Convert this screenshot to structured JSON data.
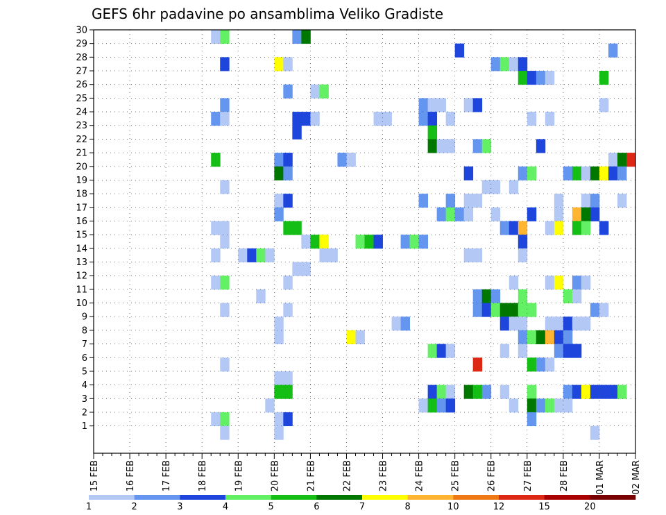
{
  "chart_data": {
    "type": "heatmap",
    "title": "GEFS 6hr padavine po ansamblima Veliko Gradiste",
    "members": [
      "1",
      "2",
      "3",
      "4",
      "5",
      "6",
      "7",
      "8",
      "9",
      "10",
      "11",
      "12",
      "13",
      "14",
      "15",
      "16",
      "17",
      "18",
      "19",
      "20",
      "21",
      "22",
      "23",
      "24",
      "25",
      "26",
      "27",
      "28",
      "29",
      "30"
    ],
    "date_labels": [
      "15 FEB",
      "16 FEB",
      "17 FEB",
      "18 FEB",
      "19 FEB",
      "20 FEB",
      "21 FEB",
      "22 FEB",
      "23 FEB",
      "24 FEB",
      "25 FEB",
      "26 FEB",
      "27 FEB",
      "28 FEB",
      "01 MAR",
      "02 MAR"
    ],
    "time_step_hours": 6,
    "grid": true,
    "colorbar": {
      "position": "bottom",
      "levels": [
        "1",
        "2",
        "3",
        "4",
        "5",
        "6",
        "7",
        "8",
        "10",
        "12",
        "15",
        "20"
      ],
      "colors": [
        "#b4c8f5",
        "#6496f0",
        "#1e46dc",
        "#64f064",
        "#14be14",
        "#007800",
        "#ffff00",
        "#ffb432",
        "#f07814",
        "#dc2814",
        "#aa0000",
        "#780000"
      ]
    },
    "cells": [
      {
        "m": 30,
        "t": [
          [
            13,
            1
          ],
          [
            14,
            4
          ],
          [
            22,
            2
          ],
          [
            23,
            6
          ]
        ]
      },
      {
        "m": 29,
        "t": [
          [
            40,
            3
          ],
          [
            57,
            2
          ]
        ]
      },
      {
        "m": 28,
        "t": [
          [
            14,
            3
          ],
          [
            20,
            7
          ],
          [
            21,
            1
          ],
          [
            44,
            2
          ],
          [
            45,
            4
          ],
          [
            46,
            1
          ],
          [
            47,
            3
          ]
        ]
      },
      {
        "m": 27,
        "t": [
          [
            47,
            5
          ],
          [
            48,
            3
          ],
          [
            49,
            2
          ],
          [
            50,
            1
          ],
          [
            56,
            5
          ]
        ]
      },
      {
        "m": 26,
        "t": [
          [
            21,
            2
          ],
          [
            24,
            1
          ],
          [
            25,
            4
          ]
        ]
      },
      {
        "m": 25,
        "t": [
          [
            14,
            2
          ],
          [
            36,
            2
          ],
          [
            37,
            1
          ],
          [
            38,
            1
          ],
          [
            41,
            1
          ],
          [
            42,
            3
          ],
          [
            56,
            1
          ]
        ]
      },
      {
        "m": 24,
        "t": [
          [
            13,
            2
          ],
          [
            14,
            1
          ],
          [
            22,
            3
          ],
          [
            23,
            3
          ],
          [
            24,
            1
          ],
          [
            31,
            1
          ],
          [
            32,
            1
          ],
          [
            36,
            2
          ],
          [
            37,
            3
          ],
          [
            39,
            1
          ],
          [
            48,
            1
          ],
          [
            50,
            1
          ]
        ]
      },
      {
        "m": 23,
        "t": [
          [
            22,
            3
          ],
          [
            37,
            5
          ]
        ]
      },
      {
        "m": 22,
        "t": [
          [
            37,
            6
          ],
          [
            38,
            1
          ],
          [
            39,
            1
          ],
          [
            42,
            2
          ],
          [
            43,
            4
          ],
          [
            49,
            3
          ]
        ]
      },
      {
        "m": 21,
        "t": [
          [
            13,
            5
          ],
          [
            20,
            2
          ],
          [
            21,
            3
          ],
          [
            27,
            2
          ],
          [
            28,
            1
          ],
          [
            57,
            1
          ],
          [
            58,
            6
          ],
          [
            59,
            10
          ]
        ]
      },
      {
        "m": 20,
        "t": [
          [
            20,
            6
          ],
          [
            21,
            2
          ],
          [
            41,
            3
          ],
          [
            47,
            2
          ],
          [
            48,
            4
          ],
          [
            52,
            2
          ],
          [
            53,
            5
          ],
          [
            54,
            1
          ],
          [
            55,
            6
          ],
          [
            56,
            7
          ],
          [
            57,
            3
          ],
          [
            58,
            2
          ]
        ]
      },
      {
        "m": 19,
        "t": [
          [
            14,
            1
          ],
          [
            43,
            1
          ],
          [
            44,
            1
          ],
          [
            46,
            1
          ]
        ]
      },
      {
        "m": 18,
        "t": [
          [
            20,
            1
          ],
          [
            21,
            3
          ],
          [
            36,
            2
          ],
          [
            39,
            2
          ],
          [
            41,
            1
          ],
          [
            42,
            1
          ],
          [
            51,
            1
          ],
          [
            54,
            1
          ],
          [
            55,
            2
          ],
          [
            58,
            1
          ]
        ]
      },
      {
        "m": 17,
        "t": [
          [
            20,
            2
          ],
          [
            38,
            2
          ],
          [
            39,
            4
          ],
          [
            40,
            2
          ],
          [
            41,
            1
          ],
          [
            44,
            1
          ],
          [
            48,
            3
          ],
          [
            51,
            1
          ],
          [
            53,
            8
          ],
          [
            54,
            6
          ],
          [
            55,
            3
          ]
        ]
      },
      {
        "m": 16,
        "t": [
          [
            13,
            1
          ],
          [
            14,
            1
          ],
          [
            21,
            5
          ],
          [
            22,
            5
          ],
          [
            45,
            2
          ],
          [
            46,
            3
          ],
          [
            47,
            8
          ],
          [
            50,
            1
          ],
          [
            51,
            7
          ],
          [
            53,
            5
          ],
          [
            54,
            4
          ],
          [
            56,
            3
          ]
        ]
      },
      {
        "m": 15,
        "t": [
          [
            14,
            1
          ],
          [
            23,
            1
          ],
          [
            24,
            5
          ],
          [
            25,
            7
          ],
          [
            29,
            4
          ],
          [
            30,
            5
          ],
          [
            31,
            3
          ],
          [
            34,
            2
          ],
          [
            35,
            4
          ],
          [
            36,
            2
          ],
          [
            47,
            3
          ]
        ]
      },
      {
        "m": 14,
        "t": [
          [
            13,
            1
          ],
          [
            16,
            1
          ],
          [
            17,
            3
          ],
          [
            18,
            4
          ],
          [
            19,
            1
          ],
          [
            25,
            1
          ],
          [
            26,
            1
          ],
          [
            41,
            1
          ],
          [
            42,
            1
          ],
          [
            47,
            1
          ]
        ]
      },
      {
        "m": 13,
        "t": [
          [
            22,
            1
          ],
          [
            23,
            1
          ]
        ]
      },
      {
        "m": 12,
        "t": [
          [
            13,
            1
          ],
          [
            14,
            4
          ],
          [
            21,
            1
          ],
          [
            46,
            1
          ],
          [
            50,
            1
          ],
          [
            51,
            7
          ],
          [
            53,
            2
          ],
          [
            54,
            1
          ]
        ]
      },
      {
        "m": 11,
        "t": [
          [
            18,
            1
          ],
          [
            42,
            2
          ],
          [
            43,
            6
          ],
          [
            44,
            2
          ],
          [
            47,
            4
          ],
          [
            52,
            4
          ],
          [
            53,
            1
          ]
        ]
      },
      {
        "m": 10,
        "t": [
          [
            14,
            1
          ],
          [
            21,
            1
          ],
          [
            42,
            2
          ],
          [
            43,
            3
          ],
          [
            44,
            4
          ],
          [
            45,
            6
          ],
          [
            46,
            6
          ],
          [
            47,
            4
          ],
          [
            48,
            4
          ],
          [
            55,
            2
          ],
          [
            56,
            1
          ]
        ]
      },
      {
        "m": 9,
        "t": [
          [
            20,
            1
          ],
          [
            33,
            1
          ],
          [
            34,
            2
          ],
          [
            45,
            3
          ],
          [
            46,
            1
          ],
          [
            47,
            1
          ],
          [
            50,
            1
          ],
          [
            51,
            1
          ],
          [
            52,
            3
          ],
          [
            53,
            1
          ],
          [
            54,
            1
          ]
        ]
      },
      {
        "m": 8,
        "t": [
          [
            20,
            1
          ],
          [
            28,
            7
          ],
          [
            29,
            1
          ],
          [
            47,
            2
          ],
          [
            48,
            4
          ],
          [
            49,
            6
          ],
          [
            50,
            8
          ],
          [
            51,
            3
          ],
          [
            52,
            2
          ]
        ]
      },
      {
        "m": 7,
        "t": [
          [
            37,
            4
          ],
          [
            38,
            3
          ],
          [
            39,
            1
          ],
          [
            45,
            1
          ],
          [
            47,
            1
          ],
          [
            51,
            2
          ],
          [
            52,
            3
          ],
          [
            53,
            3
          ]
        ]
      },
      {
        "m": 6,
        "t": [
          [
            14,
            1
          ],
          [
            42,
            10
          ],
          [
            48,
            5
          ],
          [
            49,
            2
          ],
          [
            50,
            1
          ]
        ]
      },
      {
        "m": 5,
        "t": [
          [
            20,
            1
          ],
          [
            21,
            1
          ]
        ]
      },
      {
        "m": 4,
        "t": [
          [
            20,
            5
          ],
          [
            21,
            5
          ],
          [
            37,
            3
          ],
          [
            38,
            4
          ],
          [
            39,
            1
          ],
          [
            41,
            6
          ],
          [
            42,
            5
          ],
          [
            43,
            2
          ],
          [
            45,
            1
          ],
          [
            48,
            4
          ],
          [
            52,
            2
          ],
          [
            53,
            3
          ],
          [
            54,
            7
          ],
          [
            55,
            3
          ],
          [
            56,
            3
          ],
          [
            57,
            3
          ],
          [
            58,
            4
          ]
        ]
      },
      {
        "m": 3,
        "t": [
          [
            19,
            1
          ],
          [
            36,
            1
          ],
          [
            37,
            5
          ],
          [
            38,
            2
          ],
          [
            39,
            3
          ],
          [
            46,
            1
          ],
          [
            48,
            6
          ],
          [
            49,
            2
          ],
          [
            50,
            4
          ],
          [
            51,
            1
          ],
          [
            52,
            1
          ]
        ]
      },
      {
        "m": 2,
        "t": [
          [
            13,
            1
          ],
          [
            14,
            4
          ],
          [
            20,
            1
          ],
          [
            21,
            3
          ],
          [
            48,
            2
          ]
        ]
      },
      {
        "m": 1,
        "t": [
          [
            14,
            1
          ],
          [
            20,
            1
          ],
          [
            55,
            1
          ]
        ]
      }
    ]
  }
}
